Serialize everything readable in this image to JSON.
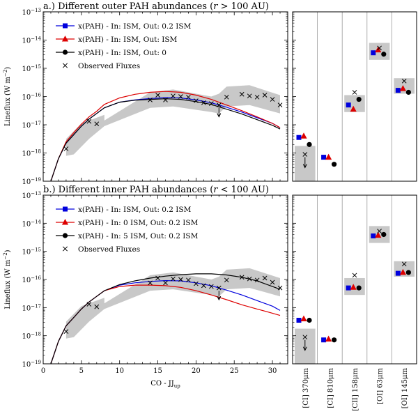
{
  "chart_data": [
    {
      "type": "line",
      "title": "a.) Different outer PAH abundances (r > 100 AU)",
      "xlabel": "CO - J_up",
      "ylabel": "Lineflux (W m^-2)",
      "xlim": [
        0,
        32
      ],
      "ylim_log10": [
        -19,
        -13
      ],
      "xticks": [
        0,
        5,
        10,
        15,
        20,
        25,
        30
      ],
      "yticks": [
        {
          "v": -19,
          "label": "10^-19"
        },
        {
          "v": -18,
          "label": "10^-18"
        },
        {
          "v": -17,
          "label": "10^-17"
        },
        {
          "v": -16,
          "label": "10^-16"
        },
        {
          "v": -15,
          "label": "10^-15"
        },
        {
          "v": -14,
          "label": "10^-14"
        },
        {
          "v": -13,
          "label": "10^-13"
        }
      ],
      "legend": [
        {
          "label": "x(PAH) - In: ISM, Out: 0.2 ISM",
          "color": "#0000dd",
          "marker": "square"
        },
        {
          "label": "x(PAH) - In: ISM, Out: ISM",
          "color": "#dd0000",
          "marker": "triangle"
        },
        {
          "label": "x(PAH) - In: ISM, Out: 0",
          "color": "#000000",
          "marker": "circle"
        },
        {
          "label": "Observed Fluxes",
          "color": "#000000",
          "marker": "cross"
        }
      ],
      "series": [
        {
          "name": "x(PAH) - In: ISM, Out: 0.2 ISM",
          "color": "#0000dd",
          "x": [
            1,
            2,
            3,
            4,
            5,
            6,
            7,
            8,
            10,
            12,
            14,
            16,
            18,
            20,
            22,
            24,
            26,
            28,
            30,
            31
          ],
          "log_y": [
            -19.5,
            -18.2,
            -17.65,
            -17.35,
            -17.05,
            -16.8,
            -16.6,
            -16.4,
            -16.2,
            -16.12,
            -16.07,
            -16.04,
            -16.05,
            -16.12,
            -16.22,
            -16.38,
            -16.55,
            -16.75,
            -16.95,
            -17.1
          ]
        },
        {
          "name": "x(PAH) - In: ISM, Out: ISM",
          "color": "#dd0000",
          "x": [
            1,
            2,
            3,
            4,
            5,
            6,
            7,
            8,
            10,
            12,
            14,
            16,
            18,
            20,
            22,
            24,
            26,
            28,
            30,
            31
          ],
          "log_y": [
            -19.5,
            -18.2,
            -17.6,
            -17.28,
            -16.98,
            -16.72,
            -16.52,
            -16.28,
            -16.05,
            -15.92,
            -15.85,
            -15.82,
            -15.85,
            -15.95,
            -16.1,
            -16.3,
            -16.5,
            -16.72,
            -16.95,
            -17.1
          ]
        },
        {
          "name": "x(PAH) - In: ISM, Out: 0",
          "color": "#000000",
          "x": [
            1,
            2,
            3,
            4,
            5,
            6,
            7,
            8,
            10,
            12,
            14,
            16,
            18,
            20,
            22,
            24,
            26,
            28,
            30,
            31
          ],
          "log_y": [
            -19.5,
            -18.2,
            -17.65,
            -17.35,
            -17.05,
            -16.8,
            -16.6,
            -16.4,
            -16.2,
            -16.13,
            -16.1,
            -16.08,
            -16.1,
            -16.18,
            -16.28,
            -16.45,
            -16.62,
            -16.82,
            -17.02,
            -17.15
          ]
        }
      ],
      "observed": [
        {
          "x": 3,
          "log_y": -17.85,
          "upper_limit": false
        },
        {
          "x": 6,
          "log_y": -16.88,
          "upper_limit": false
        },
        {
          "x": 7,
          "log_y": -16.97,
          "upper_limit": false
        },
        {
          "x": 14,
          "log_y": -16.12,
          "upper_limit": false
        },
        {
          "x": 15,
          "log_y": -15.95,
          "upper_limit": false
        },
        {
          "x": 16,
          "log_y": -16.12,
          "upper_limit": false
        },
        {
          "x": 17,
          "log_y": -15.98,
          "upper_limit": false
        },
        {
          "x": 18,
          "log_y": -16.0,
          "upper_limit": false
        },
        {
          "x": 19,
          "log_y": -16.02,
          "upper_limit": false
        },
        {
          "x": 20,
          "log_y": -16.15,
          "upper_limit": false
        },
        {
          "x": 21,
          "log_y": -16.22,
          "upper_limit": false
        },
        {
          "x": 22,
          "log_y": -16.25,
          "upper_limit": false
        },
        {
          "x": 23,
          "log_y": -16.3,
          "upper_limit": true
        },
        {
          "x": 24,
          "log_y": -16.02,
          "upper_limit": false
        },
        {
          "x": 26,
          "log_y": -15.92,
          "upper_limit": false
        },
        {
          "x": 27,
          "log_y": -15.98,
          "upper_limit": false
        },
        {
          "x": 28,
          "log_y": -16.02,
          "upper_limit": false
        },
        {
          "x": 29,
          "log_y": -15.95,
          "upper_limit": false
        },
        {
          "x": 30,
          "log_y": -16.1,
          "upper_limit": false
        },
        {
          "x": 31,
          "log_y": -16.3,
          "upper_limit": false
        }
      ],
      "band": {
        "upper": [
          [
            3,
            -17.5
          ],
          [
            5,
            -16.95
          ],
          [
            8,
            -16.65
          ],
          [
            8,
            -16.85
          ],
          [
            14,
            -15.85
          ],
          [
            17,
            -15.75
          ],
          [
            22,
            -16.0
          ],
          [
            23,
            -15.9
          ],
          [
            24,
            -15.65
          ],
          [
            27,
            -15.6
          ],
          [
            31,
            -15.95
          ]
        ],
        "lower": [
          [
            31,
            -16.6
          ],
          [
            27,
            -16.3
          ],
          [
            24,
            -16.35
          ],
          [
            23,
            -16.6
          ],
          [
            22,
            -16.55
          ],
          [
            17,
            -16.35
          ],
          [
            14,
            -16.4
          ],
          [
            8,
            -17.05
          ],
          [
            6,
            -17.5
          ],
          [
            4,
            -18.05
          ],
          [
            3,
            -18.1
          ]
        ]
      },
      "lines_panel": {
        "labels": [
          "[CI] 370μm",
          "[CI] 810μm",
          "[CII] 158μm",
          "[OI] 63μm",
          "[OI] 145μm"
        ],
        "items": [
          {
            "box": [
              -19,
              -17.75
            ],
            "obs": -18.05,
            "upper_limit": true,
            "sq": -17.45,
            "tri": -17.4,
            "circ": -17.7
          },
          {
            "box": null,
            "obs": null,
            "upper_limit": false,
            "sq": -18.15,
            "tri": -18.15,
            "circ": -18.4
          },
          {
            "box": [
              -16.55,
              -15.95
            ],
            "obs": -15.85,
            "upper_limit": false,
            "sq": -16.3,
            "tri": -16.45,
            "circ": -16.1
          },
          {
            "box": [
              -14.7,
              -14.1
            ],
            "obs": -14.28,
            "upper_limit": false,
            "sq": -14.45,
            "tri": -14.35,
            "circ": -14.5
          },
          {
            "box": [
              -15.9,
              -15.35
            ],
            "obs": -15.45,
            "upper_limit": false,
            "sq": -15.78,
            "tri": -15.72,
            "circ": -15.85
          }
        ]
      }
    },
    {
      "type": "line",
      "title": "b.) Different inner PAH abundances (r < 100 AU)",
      "xlabel": "CO - J_up",
      "ylabel": "Lineflux (W m^-2)",
      "xlim": [
        0,
        32
      ],
      "ylim_log10": [
        -19,
        -13
      ],
      "xticks": [
        0,
        5,
        10,
        15,
        20,
        25,
        30
      ],
      "yticks": [
        {
          "v": -19,
          "label": "10^-19"
        },
        {
          "v": -18,
          "label": "10^-18"
        },
        {
          "v": -17,
          "label": "10^-17"
        },
        {
          "v": -16,
          "label": "10^-16"
        },
        {
          "v": -15,
          "label": "10^-15"
        },
        {
          "v": -14,
          "label": "10^-14"
        },
        {
          "v": -13,
          "label": "10^-13"
        }
      ],
      "legend": [
        {
          "label": "x(PAH) - In: ISM,    Out: 0.2 ISM",
          "color": "#0000dd",
          "marker": "square"
        },
        {
          "label": "x(PAH) - In: 0 ISM, Out: 0.2 ISM",
          "color": "#dd0000",
          "marker": "triangle"
        },
        {
          "label": "x(PAH) - In: 5 ISM, Out: 0.2 ISM",
          "color": "#000000",
          "marker": "circle"
        },
        {
          "label": "Observed Fluxes",
          "color": "#000000",
          "marker": "cross"
        }
      ],
      "series": [
        {
          "name": "x(PAH) - In: ISM,    Out: 0.2 ISM",
          "color": "#0000dd",
          "x": [
            1,
            2,
            3,
            4,
            5,
            6,
            7,
            8,
            10,
            12,
            14,
            16,
            18,
            20,
            22,
            24,
            26,
            28,
            30,
            31
          ],
          "log_y": [
            -19.5,
            -18.2,
            -17.65,
            -17.35,
            -17.05,
            -16.8,
            -16.6,
            -16.4,
            -16.2,
            -16.12,
            -16.07,
            -16.04,
            -16.05,
            -16.12,
            -16.22,
            -16.38,
            -16.55,
            -16.75,
            -16.95,
            -17.1
          ]
        },
        {
          "name": "x(PAH) - In: 0 ISM, Out: 0.2 ISM",
          "color": "#dd0000",
          "x": [
            1,
            2,
            3,
            4,
            5,
            6,
            7,
            8,
            10,
            12,
            14,
            16,
            18,
            20,
            22,
            24,
            26,
            28,
            30,
            31
          ],
          "log_y": [
            -19.5,
            -18.2,
            -17.65,
            -17.35,
            -17.05,
            -16.8,
            -16.6,
            -16.4,
            -16.25,
            -16.2,
            -16.2,
            -16.22,
            -16.28,
            -16.4,
            -16.55,
            -16.72,
            -16.9,
            -17.05,
            -17.2,
            -17.28
          ]
        },
        {
          "name": "x(PAH) - In: 5 ISM, Out: 0.2 ISM",
          "color": "#000000",
          "x": [
            1,
            2,
            3,
            4,
            5,
            6,
            7,
            8,
            10,
            12,
            14,
            16,
            18,
            20,
            22,
            24,
            26,
            28,
            30,
            31
          ],
          "log_y": [
            -19.5,
            -18.2,
            -17.65,
            -17.35,
            -17.05,
            -16.8,
            -16.6,
            -16.4,
            -16.18,
            -16.05,
            -15.95,
            -15.88,
            -15.83,
            -15.8,
            -15.8,
            -15.84,
            -15.92,
            -16.05,
            -16.25,
            -16.35
          ]
        }
      ],
      "observed": [
        {
          "x": 3,
          "log_y": -17.85,
          "upper_limit": false
        },
        {
          "x": 6,
          "log_y": -16.88,
          "upper_limit": false
        },
        {
          "x": 7,
          "log_y": -16.97,
          "upper_limit": false
        },
        {
          "x": 14,
          "log_y": -16.12,
          "upper_limit": false
        },
        {
          "x": 15,
          "log_y": -15.95,
          "upper_limit": false
        },
        {
          "x": 16,
          "log_y": -16.12,
          "upper_limit": false
        },
        {
          "x": 17,
          "log_y": -15.98,
          "upper_limit": false
        },
        {
          "x": 18,
          "log_y": -16.0,
          "upper_limit": false
        },
        {
          "x": 19,
          "log_y": -16.02,
          "upper_limit": false
        },
        {
          "x": 20,
          "log_y": -16.15,
          "upper_limit": false
        },
        {
          "x": 21,
          "log_y": -16.22,
          "upper_limit": false
        },
        {
          "x": 22,
          "log_y": -16.25,
          "upper_limit": false
        },
        {
          "x": 23,
          "log_y": -16.3,
          "upper_limit": true
        },
        {
          "x": 24,
          "log_y": -16.02,
          "upper_limit": false
        },
        {
          "x": 26,
          "log_y": -15.92,
          "upper_limit": false
        },
        {
          "x": 27,
          "log_y": -15.98,
          "upper_limit": false
        },
        {
          "x": 28,
          "log_y": -16.02,
          "upper_limit": false
        },
        {
          "x": 29,
          "log_y": -15.95,
          "upper_limit": false
        },
        {
          "x": 30,
          "log_y": -16.1,
          "upper_limit": false
        },
        {
          "x": 31,
          "log_y": -16.3,
          "upper_limit": false
        }
      ],
      "band": {
        "upper": [
          [
            3,
            -17.5
          ],
          [
            5,
            -16.95
          ],
          [
            8,
            -16.65
          ],
          [
            8,
            -16.85
          ],
          [
            14,
            -15.85
          ],
          [
            17,
            -15.75
          ],
          [
            22,
            -16.0
          ],
          [
            23,
            -15.9
          ],
          [
            24,
            -15.65
          ],
          [
            27,
            -15.6
          ],
          [
            31,
            -15.95
          ]
        ],
        "lower": [
          [
            31,
            -16.6
          ],
          [
            27,
            -16.3
          ],
          [
            24,
            -16.35
          ],
          [
            23,
            -16.6
          ],
          [
            22,
            -16.55
          ],
          [
            17,
            -16.35
          ],
          [
            14,
            -16.4
          ],
          [
            8,
            -17.05
          ],
          [
            6,
            -17.5
          ],
          [
            4,
            -18.05
          ],
          [
            3,
            -18.1
          ]
        ]
      },
      "lines_panel": {
        "labels": [
          "[CI] 370μm",
          "[CI] 810μm",
          "[CII] 158μm",
          "[OI] 63μm",
          "[OI] 145μm"
        ],
        "items": [
          {
            "box": [
              -19,
              -17.75
            ],
            "obs": -18.05,
            "upper_limit": true,
            "sq": -17.45,
            "tri": -17.4,
            "circ": -17.45
          },
          {
            "box": null,
            "obs": null,
            "upper_limit": false,
            "sq": -18.15,
            "tri": -18.12,
            "circ": -18.15
          },
          {
            "box": [
              -16.55,
              -15.95
            ],
            "obs": -15.85,
            "upper_limit": false,
            "sq": -16.3,
            "tri": -16.28,
            "circ": -16.3
          },
          {
            "box": [
              -14.7,
              -14.1
            ],
            "obs": -14.28,
            "upper_limit": false,
            "sq": -14.45,
            "tri": -14.43,
            "circ": -14.4
          },
          {
            "box": [
              -15.9,
              -15.35
            ],
            "obs": -15.45,
            "upper_limit": false,
            "sq": -15.78,
            "tri": -15.75,
            "circ": -15.75
          }
        ]
      }
    }
  ]
}
